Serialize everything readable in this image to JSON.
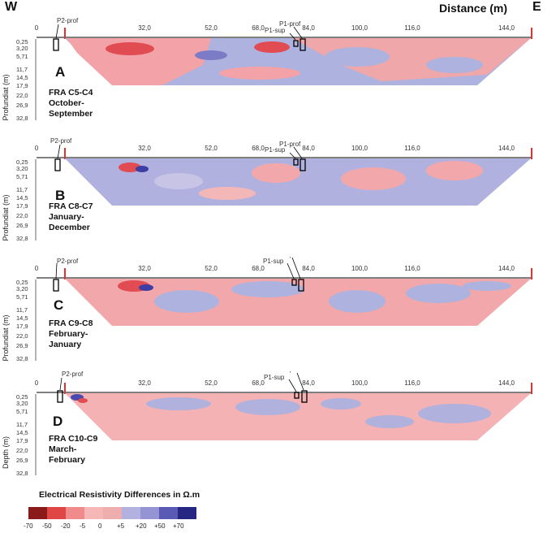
{
  "header": {
    "west": "W",
    "east": "E",
    "distance_label": "Distance (m)"
  },
  "x_ticks": [
    "0",
    "32,0",
    "52,0",
    "68,0",
    "84,0",
    "100,0",
    "116,0",
    "144,0"
  ],
  "depth_ticks": [
    "0,25",
    "3,20",
    "5,71",
    "11,7",
    "14,5",
    "17,9",
    "22,0",
    "26,9",
    "32,8"
  ],
  "markers": {
    "p2": "P2-prof",
    "p1sup": "P1-sup",
    "p1prof": "P1-prof"
  },
  "panels": [
    {
      "letter": "A",
      "caption": [
        "FRA C5-C4",
        "October-",
        "September"
      ],
      "ylabel": "Profundiat (m)"
    },
    {
      "letter": "B",
      "caption": [
        "FRA C8-C7",
        "January-",
        "December"
      ],
      "ylabel": "Profundiat (m)"
    },
    {
      "letter": "C",
      "caption": [
        "FRA C9-C8",
        "February-",
        "January"
      ],
      "ylabel": "Profundiat (m)"
    },
    {
      "letter": "D",
      "caption": [
        "FRA C10-C9",
        "March-",
        "February"
      ],
      "ylabel": "Depth (m)"
    }
  ],
  "legend": {
    "title": "Electrical Resistivity Differences in Ω.m",
    "values": [
      "-70",
      "-50",
      "-20",
      "-5",
      "0",
      "+5",
      "+20",
      "+50",
      "+70"
    ],
    "colors": [
      "#8b1a1a",
      "#e04646",
      "#ef8b8b",
      "#f6b7b7",
      "#efaeae",
      "#b3b1e0",
      "#9493d3",
      "#5a5ab5",
      "#262683"
    ]
  }
}
